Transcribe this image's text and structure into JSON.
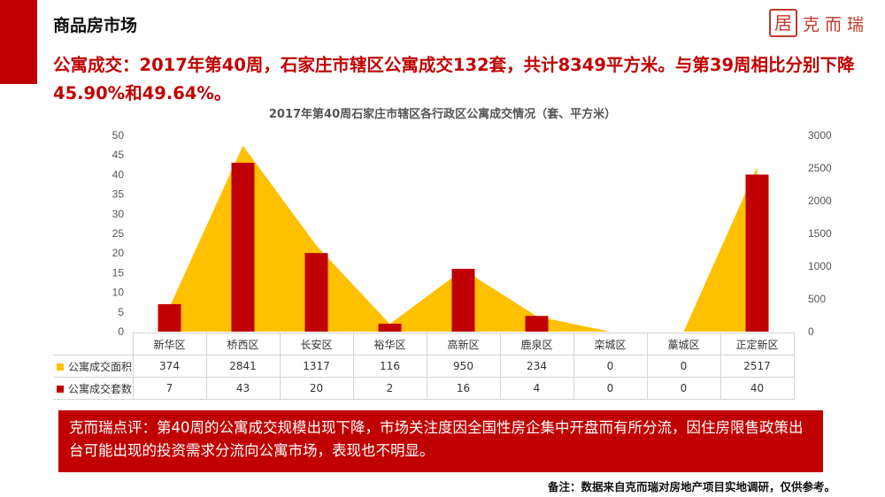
{
  "header": {
    "section_title": "商品房市场",
    "logo_glyph": "居",
    "logo_text": "克而瑞"
  },
  "headline": "公寓成交：2017年第40周，石家庄市辖区公寓成交132套，共计8349平方米。与第39周相比分别下降45.90%和49.64%。",
  "chart_data": {
    "type": "bar",
    "title": "2017年第40周石家庄市辖区各行政区公寓成交情况（套、平方米）",
    "categories": [
      "新华区",
      "桥西区",
      "长安区",
      "裕华区",
      "高新区",
      "鹿泉区",
      "栾城区",
      "藁城区",
      "正定新区"
    ],
    "series": [
      {
        "name": "公寓成交面积",
        "type": "area",
        "axis": "right",
        "color": "#ffc000",
        "values": [
          374,
          2841,
          1317,
          116,
          950,
          234,
          0,
          0,
          2517
        ]
      },
      {
        "name": "公寓成交套数",
        "type": "bar",
        "axis": "left",
        "color": "#c00000",
        "values": [
          7,
          43,
          20,
          2,
          16,
          4,
          0,
          0,
          40
        ]
      }
    ],
    "left_axis": {
      "min": 0,
      "max": 50,
      "ticks": [
        "0",
        "5",
        "10",
        "15",
        "20",
        "25",
        "30",
        "35",
        "40",
        "45",
        "50"
      ]
    },
    "right_axis": {
      "min": 0,
      "max": 3000,
      "ticks": [
        "0",
        "500",
        "1000",
        "1500",
        "2000",
        "2500",
        "3000"
      ]
    },
    "legend": "data-table"
  },
  "table": {
    "rows": [
      {
        "label": "公寓成交面积",
        "color": "#ffc000",
        "values": [
          "374",
          "2841",
          "1317",
          "116",
          "950",
          "234",
          "0",
          "0",
          "2517"
        ]
      },
      {
        "label": "公寓成交套数",
        "color": "#c00000",
        "values": [
          "7",
          "43",
          "20",
          "2",
          "16",
          "4",
          "0",
          "0",
          "40"
        ]
      }
    ]
  },
  "comment": "克而瑞点评：第40周的公寓成交规模出现下降，市场关注度因全国性房企集中开盘而有所分流，因住房限售政策出台可能出现的投资需求分流向公寓市场，表现也不明显。",
  "footnote": "备注：数据来自克而瑞对房地产项目实地调研，仅供参考。"
}
